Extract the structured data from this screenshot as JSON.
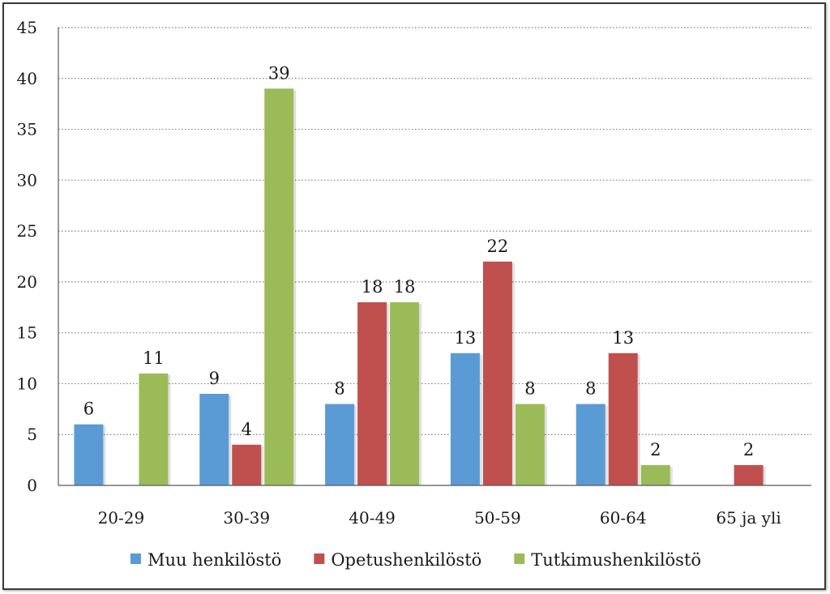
{
  "chart_data": {
    "type": "bar",
    "categories": [
      "20-29",
      "30-39",
      "40-49",
      "50-59",
      "60-64",
      "65 ja yli"
    ],
    "series": [
      {
        "name": "Muu henkilöstö",
        "values": [
          6,
          9,
          8,
          13,
          8,
          null
        ],
        "color": "#5b9bd5"
      },
      {
        "name": "Opetushenkilöstö",
        "values": [
          null,
          4,
          18,
          22,
          13,
          2
        ],
        "color": "#c0504d"
      },
      {
        "name": "Tutkimushenkilöstö",
        "values": [
          11,
          39,
          18,
          8,
          2,
          null
        ],
        "color": "#9bbb59"
      }
    ],
    "yticks": [
      0,
      5,
      10,
      15,
      20,
      25,
      30,
      35,
      40,
      45
    ],
    "ylim": [
      0,
      45
    ],
    "grid": "horizontal dotted",
    "legend_position": "bottom",
    "title": "",
    "xlabel": "",
    "ylabel": ""
  }
}
